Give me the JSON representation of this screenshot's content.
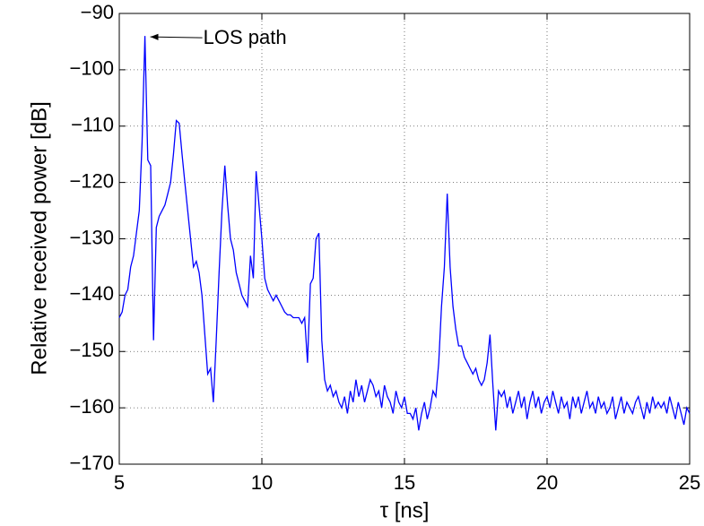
{
  "chart_data": {
    "type": "line",
    "xlabel": "τ [ns]",
    "ylabel": "Relative received power [dB]",
    "annotation": "LOS path",
    "xlim": [
      5,
      25
    ],
    "xticks": [
      5,
      10,
      15,
      20,
      25
    ],
    "ylim": [
      -170,
      -90
    ],
    "yticks": [
      {
        "value": -170,
        "label": "−170"
      },
      {
        "value": -160,
        "label": "−160"
      },
      {
        "value": -150,
        "label": "−150"
      },
      {
        "value": -140,
        "label": "−140"
      },
      {
        "value": -130,
        "label": "−130"
      },
      {
        "value": -120,
        "label": "−120"
      },
      {
        "value": -110,
        "label": "−110"
      },
      {
        "value": -100,
        "label": "−100"
      },
      {
        "value": -90,
        "label": "−90"
      }
    ],
    "grid": true,
    "series": [
      {
        "color": "#0000ff",
        "x": [
          5,
          5.1,
          5.2,
          5.3,
          5.4,
          5.5,
          5.6,
          5.7,
          5.8,
          5.9,
          6,
          6.1,
          6.2,
          6.3,
          6.4,
          6.5,
          6.6,
          6.7,
          6.8,
          6.9,
          7,
          7.1,
          7.2,
          7.3,
          7.4,
          7.5,
          7.6,
          7.7,
          7.8,
          7.9,
          8,
          8.1,
          8.2,
          8.3,
          8.4,
          8.5,
          8.6,
          8.7,
          8.8,
          8.9,
          9,
          9.1,
          9.2,
          9.3,
          9.4,
          9.5,
          9.6,
          9.7,
          9.8,
          9.9,
          10,
          10.1,
          10.2,
          10.3,
          10.4,
          10.5,
          10.6,
          10.7,
          10.8,
          10.9,
          11,
          11.1,
          11.2,
          11.3,
          11.4,
          11.5,
          11.6,
          11.7,
          11.8,
          11.9,
          12,
          12.1,
          12.2,
          12.3,
          12.4,
          12.5,
          12.6,
          12.7,
          12.8,
          12.9,
          13,
          13.1,
          13.2,
          13.3,
          13.4,
          13.5,
          13.6,
          13.7,
          13.8,
          13.9,
          14,
          14.1,
          14.2,
          14.3,
          14.4,
          14.5,
          14.6,
          14.7,
          14.8,
          14.9,
          15,
          15.1,
          15.2,
          15.3,
          15.4,
          15.5,
          15.6,
          15.7,
          15.8,
          15.9,
          16,
          16.1,
          16.2,
          16.3,
          16.4,
          16.5,
          16.6,
          16.7,
          16.8,
          16.9,
          17,
          17.1,
          17.2,
          17.3,
          17.4,
          17.5,
          17.6,
          17.7,
          17.8,
          17.9,
          18,
          18.1,
          18.2,
          18.3,
          18.4,
          18.5,
          18.6,
          18.7,
          18.8,
          18.9,
          19,
          19.1,
          19.2,
          19.3,
          19.4,
          19.5,
          19.6,
          19.7,
          19.8,
          19.9,
          20,
          20.1,
          20.2,
          20.3,
          20.4,
          20.5,
          20.6,
          20.7,
          20.8,
          20.9,
          21,
          21.1,
          21.2,
          21.3,
          21.4,
          21.5,
          21.6,
          21.7,
          21.8,
          21.9,
          22,
          22.1,
          22.2,
          22.3,
          22.4,
          22.5,
          22.6,
          22.7,
          22.8,
          22.9,
          23,
          23.1,
          23.2,
          23.3,
          23.4,
          23.5,
          23.6,
          23.7,
          23.8,
          23.9,
          24,
          24.1,
          24.2,
          24.3,
          24.4,
          24.5,
          24.6,
          24.7,
          24.8,
          24.9,
          25
        ],
        "values": [
          -144,
          -143,
          -140,
          -139,
          -135,
          -133,
          -129,
          -125,
          -113,
          -94,
          -116,
          -117,
          -148,
          -128,
          -126,
          -125,
          -124,
          -122,
          -120,
          -115,
          -109,
          -109.5,
          -115,
          -120,
          -125,
          -130,
          -135,
          -134,
          -136,
          -140,
          -147,
          -154,
          -153,
          -159,
          -148,
          -136,
          -125,
          -117,
          -124,
          -130,
          -132,
          -136,
          -138,
          -140,
          -141,
          -142,
          -133,
          -137,
          -118,
          -124,
          -130,
          -137,
          -139,
          -140,
          -141,
          -140,
          -141,
          -142,
          -143,
          -143.5,
          -143.5,
          -144,
          -144,
          -144,
          -145,
          -144,
          -152,
          -138,
          -137,
          -130,
          -129,
          -148,
          -155,
          -157,
          -156,
          -158,
          -157,
          -159,
          -160,
          -158,
          -161,
          -157,
          -159,
          -155,
          -158,
          -156,
          -159,
          -157,
          -155,
          -156,
          -158,
          -157,
          -160,
          -156,
          -158,
          -159,
          -161,
          -157,
          -159,
          -160,
          -158,
          -161,
          -161,
          -162,
          -160,
          -164,
          -161,
          -159,
          -162,
          -160,
          -157,
          -158,
          -152,
          -142,
          -135,
          -122,
          -135,
          -142,
          -146,
          -149,
          -149,
          -151,
          -152,
          -153,
          -154,
          -153,
          -155,
          -156,
          -155,
          -152,
          -147,
          -156,
          -164,
          -157,
          -158,
          -157,
          -160,
          -158,
          -161,
          -159,
          -157,
          -160,
          -158,
          -162,
          -159,
          -157,
          -160,
          -158,
          -161,
          -159,
          -158,
          -160,
          -157,
          -159,
          -161,
          -158,
          -160,
          -159,
          -162,
          -158,
          -160,
          -158,
          -161,
          -159,
          -157,
          -160,
          -159,
          -161,
          -158,
          -160,
          -159,
          -161,
          -160,
          -158,
          -162,
          -160,
          -158,
          -161,
          -159,
          -160,
          -161,
          -159,
          -158,
          -160,
          -162,
          -159,
          -161,
          -158,
          -160,
          -159,
          -160,
          -159,
          -161,
          -158,
          -160,
          -162,
          -159,
          -161,
          -163,
          -160,
          -161
        ]
      }
    ]
  }
}
